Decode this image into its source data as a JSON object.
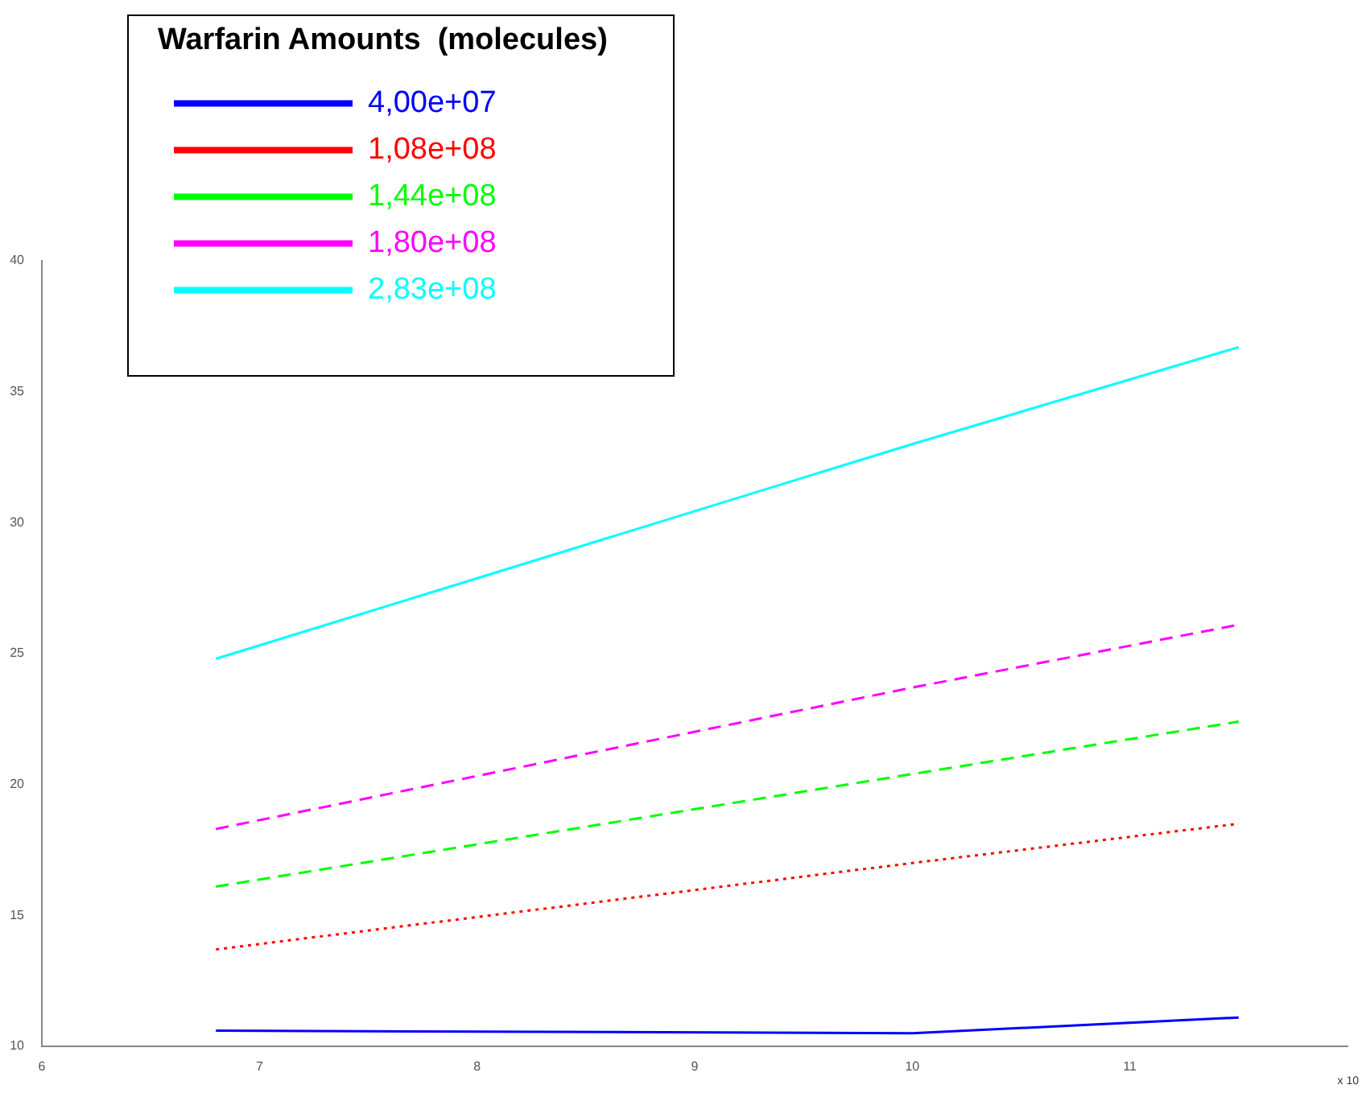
{
  "chart_data": {
    "type": "line",
    "legend_title": "Warfarin Amounts  (molecules)",
    "x": [
      6.8,
      10,
      11.5
    ],
    "series": [
      {
        "name": "4,00e+07",
        "color": "#0000ff",
        "values": [
          10.6,
          10.5,
          11.1
        ],
        "line_style": "solid"
      },
      {
        "name": "1,08e+08",
        "color": "#ff0000",
        "values": [
          13.7,
          17.0,
          18.5
        ],
        "line_style": "dotted"
      },
      {
        "name": "1,44e+08",
        "color": "#00ff00",
        "values": [
          16.1,
          20.4,
          22.4
        ],
        "line_style": "dashed"
      },
      {
        "name": "1,80e+08",
        "color": "#ff00ff",
        "values": [
          18.3,
          23.7,
          26.1
        ],
        "line_style": "dashed"
      },
      {
        "name": "2,83e+08",
        "color": "#00ffff",
        "values": [
          24.8,
          33.0,
          36.7
        ],
        "line_style": "solid"
      }
    ],
    "xlim": [
      6,
      12
    ],
    "xticks": [
      6,
      7,
      8,
      9,
      10,
      11
    ],
    "ylim": [
      10,
      40
    ],
    "yticks": [
      10,
      15,
      20,
      25,
      30,
      35,
      40
    ],
    "grid": false,
    "legend": "top left",
    "marker": "none",
    "annotations": [
      "x 10"
    ]
  }
}
